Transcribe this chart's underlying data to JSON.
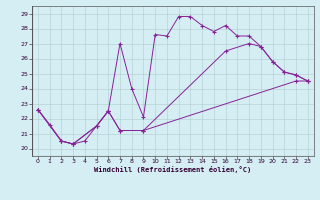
{
  "xlabel": "Windchill (Refroidissement éolien,°C)",
  "background_color": "#d4eef4",
  "line_color": "#882299",
  "xlim": [
    -0.5,
    23.5
  ],
  "ylim": [
    19.5,
    29.5
  ],
  "yticks": [
    20,
    21,
    22,
    23,
    24,
    25,
    26,
    27,
    28,
    29
  ],
  "xticks": [
    0,
    1,
    2,
    3,
    4,
    5,
    6,
    7,
    8,
    9,
    10,
    11,
    12,
    13,
    14,
    15,
    16,
    17,
    18,
    19,
    20,
    21,
    22,
    23
  ],
  "line1_x": [
    0,
    1,
    2,
    3,
    4,
    5,
    6,
    7,
    8,
    9,
    10,
    11,
    12,
    13,
    14,
    15,
    16,
    17,
    18,
    19,
    20,
    21,
    22,
    23
  ],
  "line1_y": [
    22.6,
    21.6,
    20.5,
    20.3,
    20.5,
    21.5,
    22.5,
    27.0,
    24.0,
    22.1,
    27.6,
    27.5,
    28.8,
    28.8,
    28.2,
    27.8,
    28.2,
    27.5,
    27.5,
    26.8,
    25.8,
    25.1,
    24.9,
    24.5
  ],
  "line2_x": [
    0,
    2,
    3,
    5,
    6,
    7,
    9,
    22,
    23
  ],
  "line2_y": [
    22.6,
    20.5,
    20.3,
    21.5,
    22.5,
    21.2,
    21.2,
    24.5,
    24.5
  ],
  "line3_x": [
    0,
    2,
    3,
    5,
    6,
    7,
    9,
    16,
    18,
    19,
    20,
    21,
    22,
    23
  ],
  "line3_y": [
    22.6,
    20.5,
    20.3,
    21.5,
    22.5,
    21.2,
    21.2,
    26.5,
    27.0,
    26.8,
    25.8,
    25.1,
    24.9,
    24.5
  ]
}
